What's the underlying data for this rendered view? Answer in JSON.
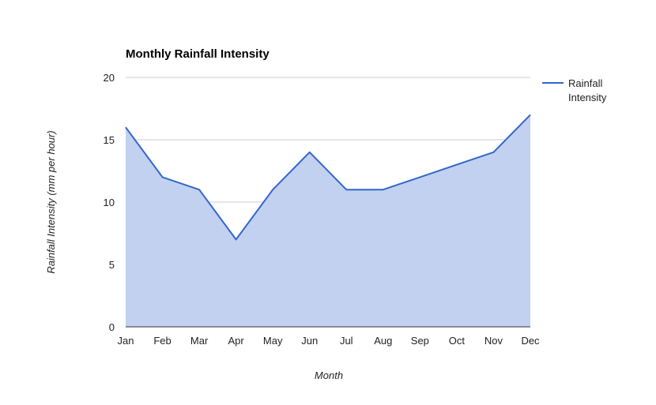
{
  "chart_data": {
    "type": "area",
    "title": "Monthly Rainfall Intensity",
    "xlabel": "Month",
    "ylabel": "Rainfall Intensity (mm per hour)",
    "categories": [
      "Jan",
      "Feb",
      "Mar",
      "Apr",
      "May",
      "Jun",
      "Jul",
      "Aug",
      "Sep",
      "Oct",
      "Nov",
      "Dec"
    ],
    "series": [
      {
        "name": "Rainfall Intensity",
        "values": [
          16,
          12,
          11,
          7,
          11,
          14,
          11,
          11,
          12,
          13,
          14,
          17
        ]
      }
    ],
    "ylim": [
      0,
      20
    ],
    "yticks": [
      0,
      5,
      10,
      15,
      20
    ],
    "grid": true,
    "legend_position": "right",
    "colors": {
      "line": "#3366cc",
      "fill": "#c2d1f0",
      "grid": "#cccccc"
    }
  },
  "legend": {
    "lines": [
      "Rainfall",
      "Intensity"
    ]
  }
}
